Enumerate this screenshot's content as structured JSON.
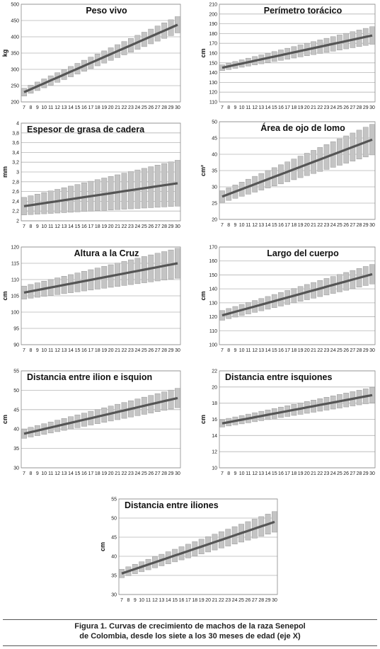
{
  "chart_data": [
    {
      "type": "line",
      "title": "Peso vivo",
      "ylabel": "kg",
      "ylim": [
        200,
        500
      ],
      "yticks": [
        200,
        250,
        300,
        350,
        400,
        450,
        500
      ],
      "x": [
        7,
        8,
        9,
        10,
        11,
        12,
        13,
        14,
        15,
        16,
        17,
        18,
        19,
        20,
        21,
        22,
        23,
        24,
        25,
        26,
        27,
        28,
        29,
        30
      ],
      "y_start": 230,
      "y_end": 437,
      "band_start": 12,
      "band_end": 25
    },
    {
      "type": "line",
      "title": "Perímetro torácico",
      "ylabel": "cm",
      "ylim": [
        110,
        210
      ],
      "yticks": [
        110,
        120,
        130,
        140,
        150,
        160,
        170,
        180,
        190,
        200,
        210
      ],
      "x": [
        7,
        8,
        9,
        10,
        11,
        12,
        13,
        14,
        15,
        16,
        17,
        18,
        19,
        20,
        21,
        22,
        23,
        24,
        25,
        26,
        27,
        28,
        29,
        30
      ],
      "y_start": 145,
      "y_end": 178,
      "band_start": 3,
      "band_end": 9
    },
    {
      "type": "line",
      "title": "Espesor de grasa de cadera",
      "ylabel": "mm",
      "ylim": [
        2,
        4
      ],
      "yticks": [
        2,
        2.2,
        2.4,
        2.6,
        2.8,
        3,
        3.2,
        3.4,
        3.6,
        3.8,
        4
      ],
      "x": [
        7,
        8,
        9,
        10,
        11,
        12,
        13,
        14,
        15,
        16,
        17,
        18,
        19,
        20,
        21,
        22,
        23,
        24,
        25,
        26,
        27,
        28,
        29,
        30
      ],
      "y_start": 2.3,
      "y_end": 2.77,
      "band_start": 0.18,
      "band_end": 0.47
    },
    {
      "type": "line",
      "title": "Área de ojo de lomo",
      "ylabel": "cm²",
      "ylim": [
        20,
        50
      ],
      "yticks": [
        20,
        25,
        30,
        35,
        40,
        45,
        50
      ],
      "x": [
        7,
        8,
        9,
        10,
        11,
        12,
        13,
        14,
        15,
        16,
        17,
        18,
        19,
        20,
        21,
        22,
        23,
        24,
        25,
        26,
        27,
        28,
        29,
        30
      ],
      "y_start": 27,
      "y_end": 44.5,
      "band_start": 1.8,
      "band_end": 4.7
    },
    {
      "type": "line",
      "title": "Altura a la Cruz",
      "ylabel": "cm",
      "ylim": [
        90,
        120
      ],
      "yticks": [
        90,
        95,
        100,
        105,
        110,
        115,
        120
      ],
      "x": [
        7,
        8,
        9,
        10,
        11,
        12,
        13,
        14,
        15,
        16,
        17,
        18,
        19,
        20,
        21,
        22,
        23,
        24,
        25,
        26,
        27,
        28,
        29,
        30
      ],
      "y_start": 106,
      "y_end": 115,
      "band_start": 2,
      "band_end": 4.6
    },
    {
      "type": "line",
      "title": "Largo del cuerpo",
      "ylabel": "cm",
      "ylim": [
        100,
        170
      ],
      "yticks": [
        100,
        110,
        120,
        130,
        140,
        150,
        160,
        170
      ],
      "x": [
        7,
        8,
        9,
        10,
        11,
        12,
        13,
        14,
        15,
        16,
        17,
        18,
        19,
        20,
        21,
        22,
        23,
        24,
        25,
        26,
        27,
        28,
        29,
        30
      ],
      "y_start": 121,
      "y_end": 150.5,
      "band_start": 3.5,
      "band_end": 7
    },
    {
      "type": "line",
      "title": "Distancia entre ilion e isquion",
      "ylabel": "cm",
      "ylim": [
        30,
        55
      ],
      "yticks": [
        30,
        35,
        40,
        45,
        50,
        55
      ],
      "x": [
        7,
        8,
        9,
        10,
        11,
        12,
        13,
        14,
        15,
        16,
        17,
        18,
        19,
        20,
        21,
        22,
        23,
        24,
        25,
        26,
        27,
        28,
        29,
        30
      ],
      "y_start": 38.8,
      "y_end": 48,
      "band_start": 1.2,
      "band_end": 2.5
    },
    {
      "type": "line",
      "title": "Distancia entre isquiones",
      "ylabel": "cm",
      "ylim": [
        10,
        22
      ],
      "yticks": [
        10,
        12,
        14,
        16,
        18,
        20,
        22
      ],
      "x": [
        7,
        8,
        9,
        10,
        11,
        12,
        13,
        14,
        15,
        16,
        17,
        18,
        19,
        20,
        21,
        22,
        23,
        24,
        25,
        26,
        27,
        28,
        29,
        30
      ],
      "y_start": 15.5,
      "y_end": 19,
      "band_start": 0.45,
      "band_end": 0.95
    },
    {
      "type": "line",
      "title": "Distancia entre iliones",
      "ylabel": "cm",
      "ylim": [
        30,
        55
      ],
      "yticks": [
        30,
        35,
        40,
        45,
        50,
        55
      ],
      "x": [
        7,
        8,
        9,
        10,
        11,
        12,
        13,
        14,
        15,
        16,
        17,
        18,
        19,
        20,
        21,
        22,
        23,
        24,
        25,
        26,
        27,
        28,
        29,
        30
      ],
      "y_start": 35.5,
      "y_end": 49,
      "band_start": 1.1,
      "band_end": 2.7
    }
  ],
  "caption": {
    "line1": "Figura 1. Curvas de crecimiento de machos  de la raza Senepol",
    "line2": "de Colombia, desde los siete a los 30 meses de edad (eje X)"
  },
  "colors": {
    "band_fill": "#c4c4c4",
    "band_stroke": "#9a9a9a",
    "line": "#555555",
    "grid": "#b5b5b5",
    "frame": "#8a8a8a"
  }
}
